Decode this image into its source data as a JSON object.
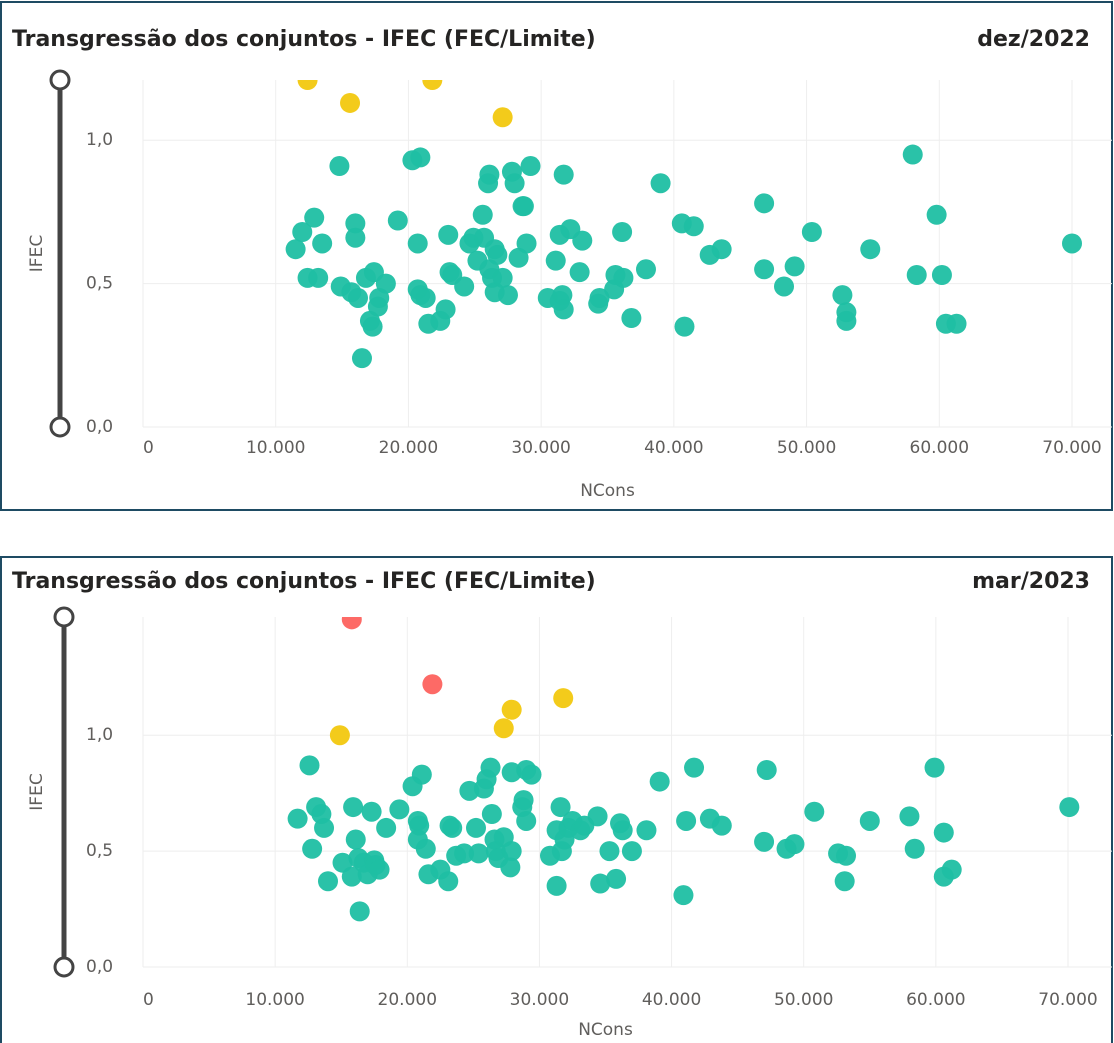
{
  "chart_data": [
    {
      "type": "scatter",
      "title": "Transgressão dos conjuntos - IFEC (FEC/Limite)",
      "subtitle": "dez/2022",
      "x_label": "NCons",
      "y_label": "IFEC",
      "grid": true,
      "xlim": [
        0,
        70000
      ],
      "ylim": [
        0,
        1.21
      ],
      "xticks": [
        0,
        {
          "value": 10000,
          "label": "10.000"
        },
        {
          "value": 20000,
          "label": "20.000"
        },
        {
          "value": 30000,
          "label": "30.000"
        },
        {
          "value": 40000,
          "label": "40.000"
        },
        {
          "value": 50000,
          "label": "50.000"
        },
        {
          "value": 60000,
          "label": "60.000"
        },
        {
          "value": 70000,
          "label": "70.000"
        }
      ],
      "yticks": [
        {
          "value": 0,
          "label": "0,0"
        },
        {
          "value": 0.5,
          "label": "0,5"
        },
        {
          "value": 1,
          "label": "1,0"
        }
      ],
      "series": [
        {
          "color": "#f2c80f",
          "x": [
            12400,
            15600,
            21800,
            27100
          ],
          "values": [
            1.21,
            1.13,
            1.21,
            1.08
          ]
        },
        {
          "color": "#1fbfa3",
          "x": [
            11500,
            12000,
            12900,
            13500,
            12400,
            13200,
            14800,
            14900,
            16000,
            16000,
            15700,
            16200,
            16500,
            16800,
            17100,
            17300,
            17400,
            17700,
            17800,
            18300,
            19200,
            20300,
            20700,
            20900,
            20700,
            20900,
            21300,
            21500,
            22400,
            22800,
            23000,
            23100,
            23300,
            24200,
            24600,
            24900,
            25200,
            25600,
            25700,
            26000,
            26100,
            26100,
            26300,
            26500,
            26500,
            26700,
            27100,
            27500,
            27800,
            28000,
            28300,
            28600,
            28700,
            28900,
            29200,
            30500,
            31100,
            31400,
            31400,
            31600,
            31700,
            31700,
            32200,
            32900,
            33100,
            34300,
            34400,
            35600,
            36100,
            35500,
            36200,
            36800,
            37900,
            39000,
            40600,
            41500,
            42700,
            43600,
            40800,
            46800,
            46800,
            48300,
            49100,
            50400,
            52700,
            53000,
            53000,
            54800,
            58000,
            58300,
            59800,
            60200,
            60500,
            61300,
            70000
          ],
          "values": [
            0.62,
            0.68,
            0.73,
            0.64,
            0.52,
            0.52,
            0.91,
            0.49,
            0.71,
            0.66,
            0.47,
            0.45,
            0.24,
            0.52,
            0.37,
            0.35,
            0.54,
            0.42,
            0.45,
            0.5,
            0.72,
            0.93,
            0.64,
            0.94,
            0.48,
            0.46,
            0.45,
            0.36,
            0.37,
            0.41,
            0.67,
            0.54,
            0.53,
            0.49,
            0.64,
            0.66,
            0.58,
            0.74,
            0.66,
            0.85,
            0.88,
            0.55,
            0.52,
            0.47,
            0.62,
            0.6,
            0.52,
            0.46,
            0.89,
            0.85,
            0.59,
            0.77,
            0.77,
            0.64,
            0.91,
            0.45,
            0.58,
            0.67,
            0.44,
            0.46,
            0.41,
            0.88,
            0.69,
            0.54,
            0.65,
            0.43,
            0.45,
            0.53,
            0.68,
            0.48,
            0.52,
            0.38,
            0.55,
            0.85,
            0.71,
            0.7,
            0.6,
            0.62,
            0.35,
            0.78,
            0.55,
            0.49,
            0.56,
            0.68,
            0.46,
            0.4,
            0.37,
            0.62,
            0.95,
            0.53,
            0.74,
            0.53,
            0.36,
            0.36,
            0.64
          ]
        }
      ]
    },
    {
      "type": "scatter",
      "title": "Transgressão dos conjuntos - IFEC (FEC/Limite)",
      "subtitle": "mar/2023",
      "x_label": "NCons",
      "y_label": "IFEC",
      "grid": true,
      "xlim": [
        0,
        70000
      ],
      "ylim": [
        0,
        1.51
      ],
      "xticks": [
        0,
        {
          "value": 10000,
          "label": "10.000"
        },
        {
          "value": 20000,
          "label": "20.000"
        },
        {
          "value": 30000,
          "label": "30.000"
        },
        {
          "value": 40000,
          "label": "40.000"
        },
        {
          "value": 50000,
          "label": "50.000"
        },
        {
          "value": 60000,
          "label": "60.000"
        },
        {
          "value": 70000,
          "label": "70.000"
        }
      ],
      "yticks": [
        {
          "value": 0,
          "label": "0,0"
        },
        {
          "value": 0.5,
          "label": "0,5"
        },
        {
          "value": 1,
          "label": "1,0"
        }
      ],
      "series": [
        {
          "color": "#fd625e",
          "x": [
            15800,
            21900
          ],
          "values": [
            1.5,
            1.22
          ]
        },
        {
          "color": "#f2c80f",
          "x": [
            14900,
            27300,
            27900,
            31800
          ],
          "values": [
            1.0,
            1.03,
            1.11,
            1.16
          ]
        },
        {
          "color": "#1fbfa3",
          "x": [
            11700,
            12600,
            12800,
            13100,
            13500,
            13700,
            14000,
            15100,
            15900,
            16100,
            15800,
            16300,
            16400,
            16700,
            17000,
            17300,
            17500,
            17600,
            17900,
            18400,
            19400,
            20400,
            20800,
            20900,
            21100,
            20800,
            21400,
            21600,
            22500,
            23100,
            23200,
            23400,
            23700,
            24300,
            24700,
            25200,
            25400,
            25800,
            26000,
            26300,
            26400,
            26600,
            26700,
            26900,
            27300,
            27800,
            27900,
            27900,
            28700,
            28800,
            29000,
            29000,
            29400,
            30800,
            31300,
            31300,
            31600,
            31700,
            31900,
            32200,
            32500,
            33100,
            33400,
            34400,
            34600,
            35300,
            35800,
            36100,
            36300,
            37000,
            38100,
            39100,
            40900,
            41100,
            41700,
            42900,
            43800,
            47000,
            47200,
            48700,
            49300,
            50800,
            52600,
            53200,
            53100,
            55000,
            58000,
            58400,
            59900,
            60600,
            60600,
            61200,
            70100
          ],
          "values": [
            0.64,
            0.87,
            0.51,
            0.69,
            0.66,
            0.6,
            0.37,
            0.45,
            0.69,
            0.55,
            0.39,
            0.47,
            0.24,
            0.45,
            0.4,
            0.67,
            0.46,
            0.44,
            0.42,
            0.6,
            0.68,
            0.78,
            0.63,
            0.61,
            0.83,
            0.55,
            0.51,
            0.4,
            0.42,
            0.37,
            0.61,
            0.6,
            0.48,
            0.49,
            0.76,
            0.6,
            0.49,
            0.77,
            0.81,
            0.86,
            0.66,
            0.55,
            0.5,
            0.47,
            0.56,
            0.43,
            0.5,
            0.84,
            0.69,
            0.72,
            0.63,
            0.85,
            0.83,
            0.48,
            0.59,
            0.35,
            0.69,
            0.5,
            0.55,
            0.6,
            0.63,
            0.59,
            0.61,
            0.65,
            0.36,
            0.5,
            0.38,
            0.62,
            0.59,
            0.5,
            0.59,
            0.8,
            0.31,
            0.63,
            0.86,
            0.64,
            0.61,
            0.54,
            0.85,
            0.51,
            0.53,
            0.67,
            0.49,
            0.48,
            0.37,
            0.63,
            0.65,
            0.51,
            0.86,
            0.58,
            0.39,
            0.42,
            0.69
          ]
        }
      ]
    }
  ]
}
